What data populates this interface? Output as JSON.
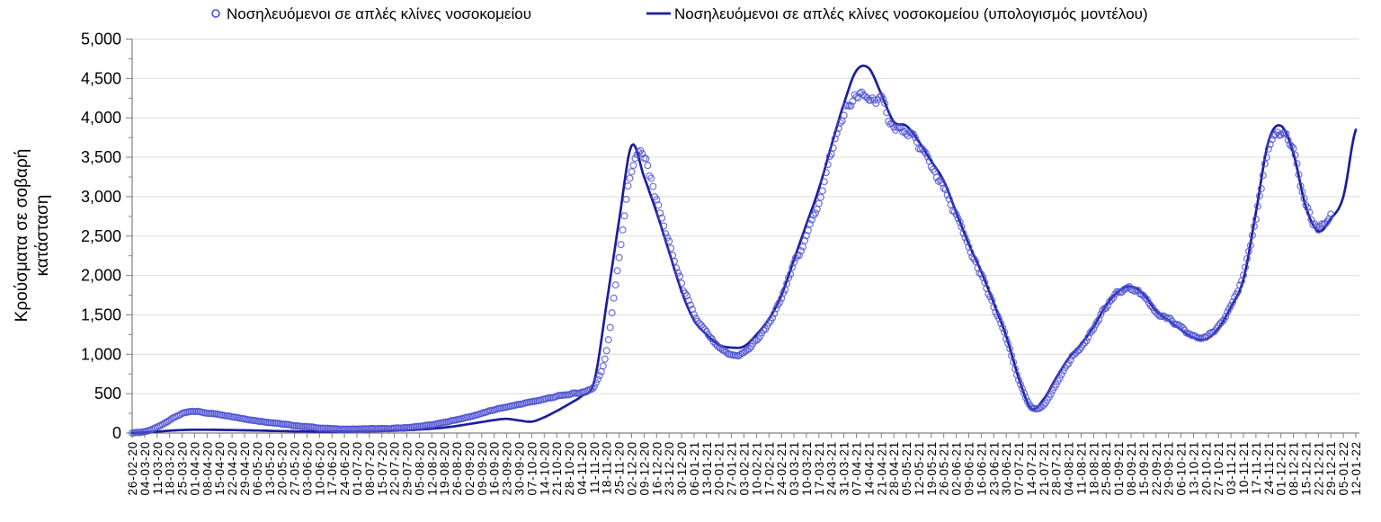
{
  "legend": {
    "items": [
      {
        "label": "Νοσηλευόμενοι σε απλές κλίνες νοσοκομείου",
        "marker": "open-circle"
      },
      {
        "label": "Νοσηλευόμενοι σε απλές κλίνες νοσοκομείου (υπολογισμός μοντέλου)",
        "marker": "line"
      }
    ]
  },
  "y_axis": {
    "title_line1": "Κρούσματα σε σοβαρή",
    "title_line2": "κατάσταση",
    "min": 0,
    "max": 5000,
    "step": 500,
    "tick_labels": [
      "0",
      "500",
      "1,000",
      "1,500",
      "2,000",
      "2,500",
      "3,000",
      "3,500",
      "4,000",
      "4,500",
      "5,000"
    ]
  },
  "colors": {
    "background": "#ffffff",
    "grid": "#dcdcdc",
    "axis": "#7f7f7f",
    "text": "#000000",
    "observed": "#4c50cf",
    "model": "#1b1e9c"
  },
  "chart_data": {
    "type": "line",
    "subtype": "scatter-plus-model-line",
    "title": "",
    "xlabel": "",
    "ylabel": "Κρούσματα σε σοβαρή κατάσταση",
    "ylim": [
      0,
      5000
    ],
    "y_step": 500,
    "grid": true,
    "legend_position": "top",
    "x_tick_rotation": -90,
    "x_labels": [
      "26-02-20",
      "04-03-20",
      "11-03-20",
      "18-03-20",
      "25-03-20",
      "01-04-20",
      "08-04-20",
      "15-04-20",
      "22-04-20",
      "29-04-20",
      "06-05-20",
      "13-05-20",
      "20-05-20",
      "27-05-20",
      "03-06-20",
      "10-06-20",
      "17-06-20",
      "24-06-20",
      "01-07-20",
      "08-07-20",
      "15-07-20",
      "22-07-20",
      "29-07-20",
      "05-08-20",
      "12-08-20",
      "19-08-20",
      "26-08-20",
      "02-09-20",
      "09-09-20",
      "16-09-20",
      "23-09-20",
      "30-09-20",
      "07-10-20",
      "14-10-20",
      "21-10-20",
      "28-10-20",
      "04-11-20",
      "11-11-20",
      "18-11-20",
      "25-11-20",
      "02-12-20",
      "09-12-20",
      "16-12-20",
      "23-12-20",
      "30-12-20",
      "06-01-21",
      "13-01-21",
      "20-01-21",
      "27-01-21",
      "03-02-21",
      "10-02-21",
      "17-02-21",
      "24-02-21",
      "03-03-21",
      "10-03-21",
      "17-03-21",
      "24-03-21",
      "31-03-21",
      "07-04-21",
      "14-04-21",
      "21-04-21",
      "28-04-21",
      "05-05-21",
      "12-05-21",
      "19-05-21",
      "26-05-21",
      "02-06-21",
      "09-06-21",
      "16-06-21",
      "23-06-21",
      "30-06-21",
      "07-07-21",
      "14-07-21",
      "21-07-21",
      "28-07-21",
      "04-08-21",
      "11-08-21",
      "18-08-21",
      "25-08-21",
      "01-09-21",
      "08-09-21",
      "15-09-21",
      "22-09-21",
      "29-09-21",
      "06-10-21",
      "13-10-21",
      "20-10-21",
      "27-10-21",
      "03-11-21",
      "10-11-21",
      "17-11-21",
      "24-11-21",
      "01-12-21",
      "08-12-21",
      "15-12-21",
      "22-12-21",
      "29-12-21",
      "05-01-22",
      "12-01-22"
    ],
    "series": [
      {
        "name": "Νοσηλευόμενοι σε απλές κλίνες νοσοκομείου",
        "type": "scatter",
        "color": "#4c50cf",
        "values": [
          3,
          15,
          75,
          165,
          245,
          275,
          255,
          235,
          210,
          180,
          155,
          135,
          115,
          95,
          80,
          65,
          55,
          50,
          50,
          55,
          55,
          60,
          70,
          85,
          105,
          135,
          170,
          205,
          250,
          295,
          330,
          365,
          395,
          430,
          465,
          490,
          520,
          600,
          1050,
          2250,
          3350,
          3500,
          2950,
          2400,
          1900,
          1500,
          1270,
          1080,
          990,
          1020,
          1180,
          1400,
          1700,
          2150,
          2500,
          2950,
          3550,
          4050,
          4250,
          4250,
          4200,
          3900,
          3800,
          3650,
          3400,
          3100,
          2750,
          2350,
          2000,
          1600,
          1200,
          680,
          330,
          360,
          620,
          900,
          1100,
          1330,
          1600,
          1780,
          1840,
          1740,
          1540,
          1440,
          1330,
          1230,
          1220,
          1360,
          1640,
          1980,
          2750,
          3600,
          3800,
          3550,
          2900,
          2600,
          2750,
          null,
          null
        ]
      },
      {
        "name": "Νοσηλευόμενοι σε απλές κλίνες νοσοκομείου (υπολογισμός μοντέλου)",
        "type": "line",
        "color": "#1b1e9c",
        "values": [
          2,
          8,
          18,
          30,
          38,
          42,
          42,
          40,
          38,
          35,
          32,
          28,
          25,
          22,
          20,
          18,
          18,
          18,
          20,
          22,
          25,
          30,
          35,
          45,
          55,
          70,
          90,
          115,
          140,
          165,
          180,
          160,
          145,
          200,
          280,
          370,
          470,
          650,
          1650,
          2700,
          3650,
          3250,
          2800,
          2300,
          1800,
          1430,
          1250,
          1120,
          1085,
          1100,
          1250,
          1450,
          1750,
          2200,
          2650,
          3100,
          3650,
          4180,
          4600,
          4630,
          4300,
          3950,
          3900,
          3700,
          3450,
          3200,
          2800,
          2400,
          2050,
          1650,
          1230,
          700,
          310,
          430,
          700,
          950,
          1130,
          1350,
          1620,
          1800,
          1860,
          1760,
          1550,
          1430,
          1310,
          1210,
          1190,
          1330,
          1600,
          1950,
          2800,
          3700,
          3900,
          3550,
          2870,
          2560,
          2720,
          3000,
          3850
        ]
      }
    ]
  }
}
